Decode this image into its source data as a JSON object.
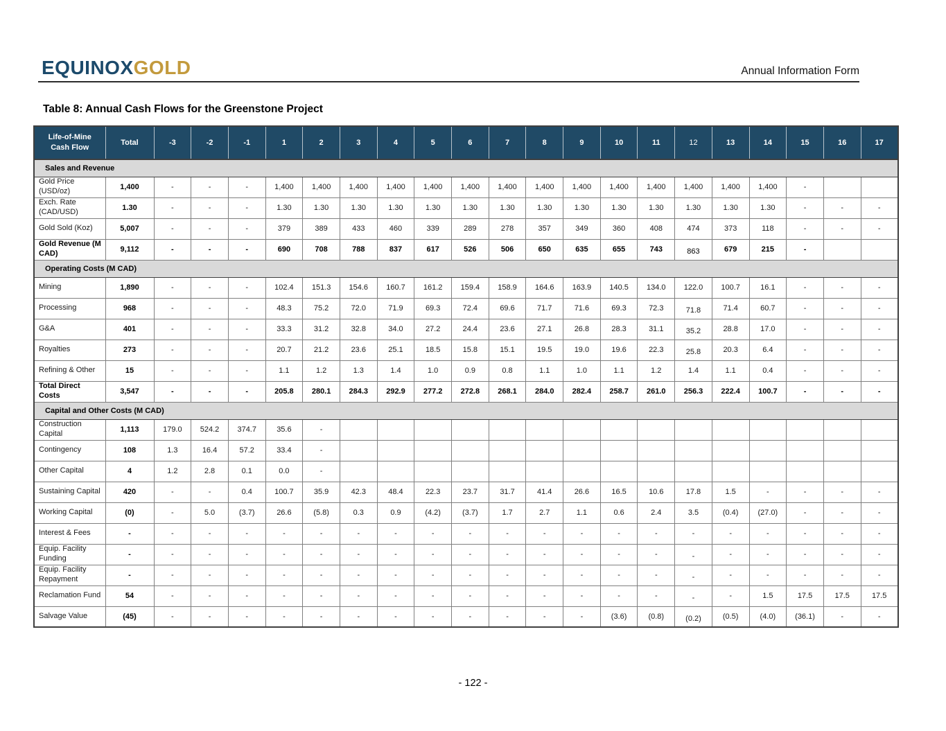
{
  "page": {
    "logo_part1": "EQUINOX",
    "logo_part2": "GOLD",
    "doc_type": "Annual Information Form",
    "title": "Table 8: Annual Cash Flows for the Greenstone Project",
    "page_number": "- 122 -"
  },
  "colors": {
    "header_navy": "#204a66",
    "section_gray": "#d9d9d9",
    "logo_navy": "#1c4a6b",
    "logo_gold": "#c39a3d"
  },
  "table": {
    "columns": [
      "Life-of-Mine\nCash Flow",
      "Total",
      "-3",
      "-2",
      "-1",
      "1",
      "2",
      "3",
      "4",
      "5",
      "6",
      "7",
      "8",
      "9",
      "10",
      "11",
      "12",
      "13",
      "14",
      "15",
      "16",
      "17"
    ],
    "header_light_col_index": 16,
    "shift12_value_index": 14,
    "sections": [
      {
        "label": "Sales and Revenue",
        "rows": [
          {
            "label": "Gold Price (USD/oz)",
            "total": "1,400",
            "bold": false,
            "shift12": false,
            "values": [
              "-",
              "-",
              "-",
              "1,400",
              "1,400",
              "1,400",
              "1,400",
              "1,400",
              "1,400",
              "1,400",
              "1,400",
              "1,400",
              "1,400",
              "1,400",
              "1,400",
              "1,400",
              "1,400",
              "-",
              "",
              ""
            ]
          },
          {
            "label": "Exch. Rate (CAD/USD)",
            "total": "1.30",
            "bold": false,
            "shift12": false,
            "values": [
              "-",
              "-",
              "-",
              "1.30",
              "1.30",
              "1.30",
              "1.30",
              "1.30",
              "1.30",
              "1.30",
              "1.30",
              "1.30",
              "1.30",
              "1.30",
              "1.30",
              "1.30",
              "1.30",
              "-",
              "-",
              "-"
            ]
          },
          {
            "label": "Gold Sold (Koz)",
            "total": "5,007",
            "bold": false,
            "shift12": false,
            "values": [
              "-",
              "-",
              "-",
              "379",
              "389",
              "433",
              "460",
              "339",
              "289",
              "278",
              "357",
              "349",
              "360",
              "408",
              "474",
              "373",
              "118",
              "-",
              "-",
              "-"
            ]
          },
          {
            "label": "Gold Revenue (M CAD)",
            "total": "9,112",
            "bold": true,
            "shift12": true,
            "values": [
              "-",
              "-",
              "-",
              "690",
              "708",
              "788",
              "837",
              "617",
              "526",
              "506",
              "650",
              "635",
              "655",
              "743",
              "863",
              "679",
              "215",
              "-",
              "",
              ""
            ]
          }
        ]
      },
      {
        "label": "Operating Costs (M CAD)",
        "rows": [
          {
            "label": "Mining",
            "total": "1,890",
            "bold": false,
            "shift12": false,
            "values": [
              "-",
              "-",
              "-",
              "102.4",
              "151.3",
              "154.6",
              "160.7",
              "161.2",
              "159.4",
              "158.9",
              "164.6",
              "163.9",
              "140.5",
              "134.0",
              "122.0",
              "100.7",
              "16.1",
              "-",
              "-",
              "-"
            ]
          },
          {
            "label": "Processing",
            "total": "968",
            "bold": false,
            "shift12": true,
            "values": [
              "-",
              "-",
              "-",
              "48.3",
              "75.2",
              "72.0",
              "71.9",
              "69.3",
              "72.4",
              "69.6",
              "71.7",
              "71.6",
              "69.3",
              "72.3",
              "71.8",
              "71.4",
              "60.7",
              "-",
              "-",
              "-"
            ]
          },
          {
            "label": "G&A",
            "total": "401",
            "bold": false,
            "shift12": true,
            "values": [
              "-",
              "-",
              "-",
              "33.3",
              "31.2",
              "32.8",
              "34.0",
              "27.2",
              "24.4",
              "23.6",
              "27.1",
              "26.8",
              "28.3",
              "31.1",
              "35.2",
              "28.8",
              "17.0",
              "-",
              "-",
              "-"
            ]
          },
          {
            "label": "Royalties",
            "total": "273",
            "bold": false,
            "shift12": true,
            "values": [
              "-",
              "-",
              "-",
              "20.7",
              "21.2",
              "23.6",
              "25.1",
              "18.5",
              "15.8",
              "15.1",
              "19.5",
              "19.0",
              "19.6",
              "22.3",
              "25.8",
              "20.3",
              "6.4",
              "-",
              "-",
              "-"
            ]
          },
          {
            "label": "Refining & Other",
            "total": "15",
            "bold": false,
            "shift12": false,
            "values": [
              "-",
              "-",
              "-",
              "1.1",
              "1.2",
              "1.3",
              "1.4",
              "1.0",
              "0.9",
              "0.8",
              "1.1",
              "1.0",
              "1.1",
              "1.2",
              "1.4",
              "1.1",
              "0.4",
              "-",
              "-",
              "-"
            ]
          },
          {
            "label": "Total Direct Costs",
            "total": "3,547",
            "bold": true,
            "shift12": false,
            "values": [
              "-",
              "-",
              "-",
              "205.8",
              "280.1",
              "284.3",
              "292.9",
              "277.2",
              "272.8",
              "268.1",
              "284.0",
              "282.4",
              "258.7",
              "261.0",
              "256.3",
              "222.4",
              "100.7",
              "-",
              "-",
              "-"
            ]
          }
        ]
      },
      {
        "label": "Capital and Other Costs (M CAD)",
        "rows": [
          {
            "label": "Construction Capital",
            "total": "1,113",
            "bold": false,
            "shift12": false,
            "values": [
              "179.0",
              "524.2",
              "374.7",
              "35.6",
              "-",
              "",
              "",
              "",
              "",
              "",
              "",
              "",
              "",
              "",
              "",
              "",
              "",
              "",
              "",
              ""
            ]
          },
          {
            "label": "Contingency",
            "total": "108",
            "bold": false,
            "shift12": false,
            "values": [
              "1.3",
              "16.4",
              "57.2",
              "33.4",
              "-",
              "",
              "",
              "",
              "",
              "",
              "",
              "",
              "",
              "",
              "",
              "",
              "",
              "",
              "",
              ""
            ]
          },
          {
            "label": "Other Capital",
            "total": "4",
            "bold": false,
            "shift12": false,
            "values": [
              "1.2",
              "2.8",
              "0.1",
              "0.0",
              "-",
              "",
              "",
              "",
              "",
              "",
              "",
              "",
              "",
              "",
              "",
              "",
              "",
              "",
              "",
              ""
            ]
          },
          {
            "label": "Sustaining Capital",
            "total": "420",
            "bold": false,
            "shift12": false,
            "values": [
              "-",
              "-",
              "0.4",
              "100.7",
              "35.9",
              "42.3",
              "48.4",
              "22.3",
              "23.7",
              "31.7",
              "41.4",
              "26.6",
              "16.5",
              "10.6",
              "17.8",
              "1.5",
              "-",
              "-",
              "-",
              "-"
            ]
          },
          {
            "label": "Working Capital",
            "total": "(0)",
            "bold": false,
            "shift12": false,
            "values": [
              "-",
              "5.0",
              "(3.7)",
              "26.6",
              "(5.8)",
              "0.3",
              "0.9",
              "(4.2)",
              "(3.7)",
              "1.7",
              "2.7",
              "1.1",
              "0.6",
              "2.4",
              "3.5",
              "(0.4)",
              "(27.0)",
              "-",
              "-",
              "-"
            ]
          },
          {
            "label": "Interest & Fees",
            "total": "-",
            "bold": false,
            "shift12": false,
            "values": [
              "-",
              "-",
              "-",
              "-",
              "-",
              "-",
              "-",
              "-",
              "-",
              "-",
              "-",
              "-",
              "-",
              "-",
              "-",
              "-",
              "-",
              "-",
              "-",
              "-"
            ]
          },
          {
            "label": "Equip. Facility Funding",
            "total": "-",
            "bold": false,
            "shift12": true,
            "values": [
              "-",
              "-",
              "-",
              "-",
              "-",
              "-",
              "-",
              "-",
              "-",
              "-",
              "-",
              "-",
              "-",
              "-",
              "-",
              "-",
              "-",
              "-",
              "-",
              "-"
            ]
          },
          {
            "label": "Equip. Facility Repayment",
            "total": "-",
            "bold": false,
            "shift12": true,
            "values": [
              "-",
              "-",
              "-",
              "-",
              "-",
              "-",
              "-",
              "-",
              "-",
              "-",
              "-",
              "-",
              "-",
              "-",
              "-",
              "-",
              "-",
              "-",
              "-",
              "-"
            ]
          },
          {
            "label": "Reclamation Fund",
            "total": "54",
            "bold": false,
            "shift12": true,
            "values": [
              "-",
              "-",
              "-",
              "-",
              "-",
              "-",
              "-",
              "-",
              "-",
              "-",
              "-",
              "-",
              "-",
              "-",
              "-",
              "-",
              "1.5",
              "17.5",
              "17.5",
              "17.5"
            ]
          },
          {
            "label": "Salvage Value",
            "total": "(45)",
            "bold": false,
            "shift12": true,
            "values": [
              "-",
              "-",
              "-",
              "-",
              "-",
              "-",
              "-",
              "-",
              "-",
              "-",
              "-",
              "-",
              "(3.6)",
              "(0.8)",
              "(0.2)",
              "(0.5)",
              "(4.0)",
              "(36.1)",
              "-",
              "-"
            ]
          }
        ]
      }
    ]
  }
}
